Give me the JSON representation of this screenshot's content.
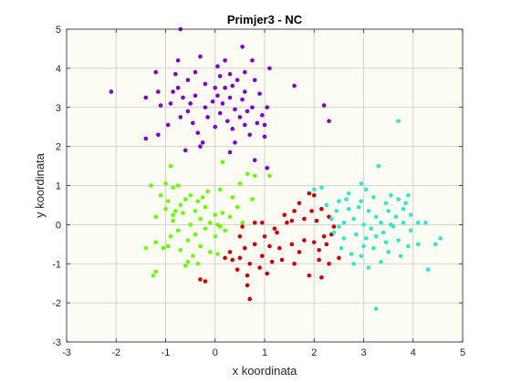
{
  "chart_data": {
    "type": "scatter",
    "title": "Primjer3 - NC",
    "xlabel": "x koordinata",
    "ylabel": "y koordinata",
    "xlim": [
      -3,
      5
    ],
    "ylim": [
      -3,
      5
    ],
    "xticks": [
      -3,
      -2,
      -1,
      0,
      1,
      2,
      3,
      4,
      5
    ],
    "yticks": [
      -3,
      -2,
      -1,
      0,
      1,
      2,
      3,
      4,
      5
    ],
    "grid": true,
    "background": "#fcfcf5",
    "series": [
      {
        "color": "#7f00cc",
        "points": [
          [
            -0.7,
            5.0
          ],
          [
            0.55,
            4.55
          ],
          [
            -1.2,
            3.9
          ],
          [
            -0.75,
            4.2
          ],
          [
            -0.3,
            4.3
          ],
          [
            0.05,
            4.05
          ],
          [
            0.75,
            4.2
          ],
          [
            -2.1,
            3.4
          ],
          [
            -1.4,
            3.25
          ],
          [
            -1.15,
            3.4
          ],
          [
            -1.1,
            3.05
          ],
          [
            -0.85,
            3.4
          ],
          [
            -0.75,
            3.5
          ],
          [
            -0.55,
            3.7
          ],
          [
            -0.4,
            3.9
          ],
          [
            -0.2,
            3.6
          ],
          [
            0.1,
            3.8
          ],
          [
            0.2,
            3.5
          ],
          [
            0.3,
            3.85
          ],
          [
            0.45,
            3.7
          ],
          [
            0.6,
            3.9
          ],
          [
            0.8,
            3.7
          ],
          [
            0.9,
            3.35
          ],
          [
            1.05,
            3.0
          ],
          [
            1.6,
            3.55
          ],
          [
            2.2,
            3.05
          ],
          [
            2.3,
            2.65
          ],
          [
            -1.4,
            2.2
          ],
          [
            -1.15,
            2.3
          ],
          [
            -0.95,
            2.55
          ],
          [
            -0.9,
            3.1
          ],
          [
            -0.7,
            2.75
          ],
          [
            -0.65,
            3.25
          ],
          [
            -0.55,
            2.9
          ],
          [
            -0.45,
            2.6
          ],
          [
            -0.4,
            3.3
          ],
          [
            -0.35,
            2.35
          ],
          [
            -0.2,
            3.0
          ],
          [
            -0.15,
            2.75
          ],
          [
            -0.05,
            3.15
          ],
          [
            0.0,
            2.5
          ],
          [
            0.05,
            3.3
          ],
          [
            0.1,
            2.85
          ],
          [
            0.15,
            3.1
          ],
          [
            0.25,
            2.65
          ],
          [
            0.3,
            3.25
          ],
          [
            0.35,
            2.45
          ],
          [
            0.4,
            2.95
          ],
          [
            0.5,
            2.75
          ],
          [
            0.55,
            3.2
          ],
          [
            0.6,
            2.55
          ],
          [
            0.65,
            2.9
          ],
          [
            0.7,
            2.3
          ],
          [
            0.75,
            3.0
          ],
          [
            0.85,
            2.6
          ],
          [
            0.95,
            2.8
          ],
          [
            1.0,
            2.55
          ],
          [
            0.4,
            2.1
          ],
          [
            -0.6,
            1.9
          ],
          [
            0.3,
            1.85
          ],
          [
            -0.25,
            2.1
          ],
          [
            0.6,
            3.4
          ],
          [
            -0.8,
            3.85
          ],
          [
            0.0,
            3.5
          ],
          [
            0.35,
            3.55
          ],
          [
            -0.5,
            3.1
          ],
          [
            0.2,
            4.2
          ],
          [
            1.1,
            4.0
          ],
          [
            -0.3,
            2.0
          ],
          [
            0.8,
            1.65
          ],
          [
            1.0,
            2.25
          ],
          [
            1.05,
            1.45
          ]
        ]
      },
      {
        "color": "#66ff00",
        "points": [
          [
            -0.9,
            1.5
          ],
          [
            -1.3,
            1.0
          ],
          [
            -1.0,
            1.05
          ],
          [
            -0.85,
            0.95
          ],
          [
            -0.75,
            1.0
          ],
          [
            0.15,
            1.6
          ],
          [
            0.65,
            1.3
          ],
          [
            0.8,
            1.25
          ],
          [
            1.1,
            1.25
          ],
          [
            -1.1,
            0.75
          ],
          [
            -0.95,
            0.6
          ],
          [
            -0.7,
            0.5
          ],
          [
            -0.5,
            0.75
          ],
          [
            -0.35,
            0.6
          ],
          [
            -0.15,
            0.85
          ],
          [
            0.1,
            0.9
          ],
          [
            0.35,
            0.7
          ],
          [
            0.5,
            1.05
          ],
          [
            0.75,
            0.65
          ],
          [
            -1.2,
            0.2
          ],
          [
            -1.0,
            0.4
          ],
          [
            -0.85,
            0.1
          ],
          [
            -0.8,
            0.35
          ],
          [
            -0.65,
            0.3
          ],
          [
            -0.5,
            0.0
          ],
          [
            -0.4,
            0.35
          ],
          [
            -0.3,
            0.15
          ],
          [
            -0.2,
            0.45
          ],
          [
            -0.1,
            0.05
          ],
          [
            0.0,
            0.25
          ],
          [
            0.05,
            0.0
          ],
          [
            0.15,
            0.3
          ],
          [
            0.3,
            0.2
          ],
          [
            0.45,
            0.45
          ],
          [
            0.55,
            0.05
          ],
          [
            -1.4,
            -0.6
          ],
          [
            -1.2,
            -0.45
          ],
          [
            -1.05,
            -0.6
          ],
          [
            -0.9,
            -0.3
          ],
          [
            -0.75,
            -0.15
          ],
          [
            -0.7,
            -0.65
          ],
          [
            -0.55,
            -0.4
          ],
          [
            -0.45,
            -0.8
          ],
          [
            -0.4,
            -0.25
          ],
          [
            -0.3,
            -0.55
          ],
          [
            -0.2,
            -0.1
          ],
          [
            -0.1,
            -0.7
          ],
          [
            0.0,
            -0.3
          ],
          [
            0.05,
            -0.75
          ],
          [
            0.1,
            -0.05
          ],
          [
            -1.2,
            -1.2
          ],
          [
            -1.25,
            -1.3
          ],
          [
            -0.6,
            -1.05
          ],
          [
            -0.55,
            -0.95
          ],
          [
            -0.35,
            -1.0
          ],
          [
            -0.95,
            -0.55
          ],
          [
            -0.6,
            0.65
          ],
          [
            0.2,
            -0.15
          ],
          [
            -0.85,
            0.25
          ],
          [
            -0.25,
            0.7
          ]
        ]
      },
      {
        "color": "#cc0000",
        "points": [
          [
            1.9,
            0.8
          ],
          [
            2.0,
            0.75
          ],
          [
            1.6,
            0.35
          ],
          [
            1.7,
            0.55
          ],
          [
            1.4,
            0.25
          ],
          [
            1.55,
            0.1
          ],
          [
            1.95,
            0.35
          ],
          [
            2.15,
            0.4
          ],
          [
            2.3,
            0.2
          ],
          [
            1.8,
            0.15
          ],
          [
            2.05,
            0.1
          ],
          [
            0.8,
            0.05
          ],
          [
            0.95,
            0.05
          ],
          [
            1.2,
            -0.1
          ],
          [
            1.0,
            -0.3
          ],
          [
            0.5,
            -0.3
          ],
          [
            0.6,
            -0.6
          ],
          [
            0.8,
            -0.5
          ],
          [
            1.1,
            -0.55
          ],
          [
            1.3,
            -0.6
          ],
          [
            1.55,
            -0.5
          ],
          [
            1.7,
            -0.7
          ],
          [
            1.8,
            -0.4
          ],
          [
            2.0,
            -0.45
          ],
          [
            2.2,
            -0.3
          ],
          [
            2.35,
            -0.25
          ],
          [
            2.25,
            -0.5
          ],
          [
            2.4,
            -0.05
          ],
          [
            0.2,
            -0.85
          ],
          [
            0.35,
            -0.9
          ],
          [
            0.5,
            -0.85
          ],
          [
            0.7,
            -1.0
          ],
          [
            0.95,
            -0.8
          ],
          [
            1.15,
            -0.95
          ],
          [
            1.35,
            -0.9
          ],
          [
            1.6,
            -1.0
          ],
          [
            2.1,
            -0.9
          ],
          [
            2.3,
            -1.0
          ],
          [
            2.5,
            -0.85
          ],
          [
            0.45,
            -1.15
          ],
          [
            0.65,
            -1.3
          ],
          [
            0.9,
            -1.1
          ],
          [
            1.05,
            -1.25
          ],
          [
            1.9,
            -1.3
          ],
          [
            2.15,
            -1.35
          ],
          [
            -0.3,
            -1.4
          ],
          [
            -0.2,
            -1.45
          ],
          [
            0.65,
            -1.55
          ],
          [
            0.7,
            -1.9
          ],
          [
            0.3,
            -0.7
          ],
          [
            2.1,
            -0.65
          ],
          [
            1.45,
            0.05
          ],
          [
            1.25,
            -0.2
          ],
          [
            0.55,
            -0.05
          ]
        ]
      },
      {
        "color": "#33e6cc",
        "points": [
          [
            3.3,
            1.5
          ],
          [
            2.0,
            0.9
          ],
          [
            2.15,
            0.95
          ],
          [
            2.95,
            1.05
          ],
          [
            3.05,
            0.9
          ],
          [
            2.7,
            0.8
          ],
          [
            2.5,
            0.6
          ],
          [
            3.2,
            0.7
          ],
          [
            3.55,
            0.75
          ],
          [
            3.7,
            0.65
          ],
          [
            3.45,
            0.55
          ],
          [
            3.9,
            0.75
          ],
          [
            2.25,
            0.5
          ],
          [
            2.45,
            0.35
          ],
          [
            2.7,
            0.4
          ],
          [
            2.9,
            0.45
          ],
          [
            3.1,
            0.35
          ],
          [
            3.25,
            0.2
          ],
          [
            3.5,
            0.35
          ],
          [
            3.65,
            0.2
          ],
          [
            3.8,
            0.4
          ],
          [
            3.95,
            0.25
          ],
          [
            4.1,
            0.05
          ],
          [
            4.25,
            0.05
          ],
          [
            2.35,
            0.15
          ],
          [
            2.6,
            0.05
          ],
          [
            2.8,
            0.15
          ],
          [
            3.0,
            0.0
          ],
          [
            3.15,
            -0.1
          ],
          [
            3.35,
            0.05
          ],
          [
            3.6,
            -0.05
          ],
          [
            3.8,
            0.05
          ],
          [
            3.95,
            -0.15
          ],
          [
            2.4,
            -0.2
          ],
          [
            2.6,
            -0.35
          ],
          [
            2.85,
            -0.25
          ],
          [
            3.05,
            -0.35
          ],
          [
            3.25,
            -0.3
          ],
          [
            3.45,
            -0.45
          ],
          [
            3.7,
            -0.4
          ],
          [
            3.9,
            -0.55
          ],
          [
            4.1,
            -0.5
          ],
          [
            2.55,
            -0.6
          ],
          [
            2.75,
            -0.75
          ],
          [
            2.95,
            -0.8
          ],
          [
            3.2,
            -0.6
          ],
          [
            3.5,
            -0.7
          ],
          [
            3.75,
            -0.8
          ],
          [
            2.8,
            -1.0
          ],
          [
            3.1,
            -1.1
          ],
          [
            3.35,
            -0.95
          ],
          [
            4.3,
            -1.15
          ],
          [
            4.55,
            -0.35
          ],
          [
            4.45,
            -0.5
          ],
          [
            3.25,
            -2.15
          ],
          [
            3.7,
            2.65
          ],
          [
            3.55,
            0.0
          ],
          [
            2.95,
            0.6
          ],
          [
            3.4,
            -0.2
          ],
          [
            2.5,
            -0.05
          ],
          [
            3.85,
            0.55
          ],
          [
            3.0,
            -0.55
          ],
          [
            2.65,
            0.65
          ]
        ]
      }
    ]
  }
}
